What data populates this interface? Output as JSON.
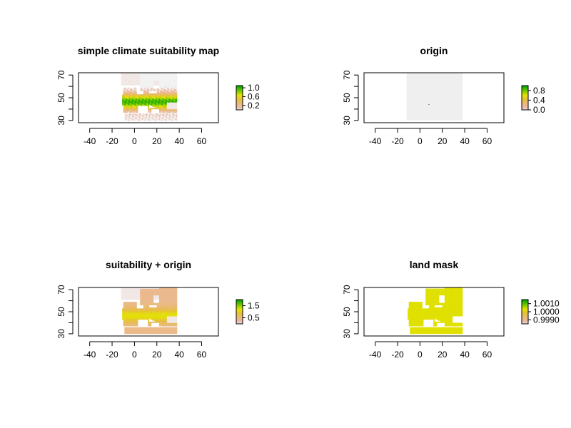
{
  "chart_data": [
    {
      "type": "raster-map",
      "title": "simple climate suitability map",
      "x_ticks": [
        -40,
        -20,
        0,
        20,
        40,
        60
      ],
      "y_ticks": [
        30,
        50,
        70
      ],
      "xlim": [
        -50,
        75
      ],
      "ylim": [
        28,
        72
      ],
      "data_extent": {
        "lon": [
          -12,
          38
        ],
        "lat": [
          30,
          72
        ]
      },
      "value_range": [
        0,
        1.1
      ],
      "legend_ticks": [
        "1.0",
        "0.6",
        "0.2"
      ],
      "legend_values": [
        1.0,
        0.6,
        0.2
      ],
      "pattern": "suitability",
      "colormap": "terrain_rev"
    },
    {
      "type": "raster-map",
      "title": "origin",
      "x_ticks": [
        -40,
        -20,
        0,
        20,
        40,
        60
      ],
      "y_ticks": [
        30,
        50,
        70
      ],
      "xlim": [
        -50,
        75
      ],
      "ylim": [
        28,
        72
      ],
      "data_extent": {
        "lon": [
          -12,
          38
        ],
        "lat": [
          30,
          72
        ]
      },
      "value_range": [
        0,
        1
      ],
      "legend_ticks": [
        "0.8",
        "0.4",
        "0.0"
      ],
      "legend_values": [
        0.8,
        0.4,
        0.0
      ],
      "pattern": "origin",
      "origin_point": {
        "lon": 8,
        "lat": 44
      },
      "colormap": "terrain_rev"
    },
    {
      "type": "raster-map",
      "title": "suitability + origin",
      "x_ticks": [
        -40,
        -20,
        0,
        20,
        40,
        60
      ],
      "y_ticks": [
        30,
        50,
        70
      ],
      "xlim": [
        -50,
        75
      ],
      "ylim": [
        28,
        72
      ],
      "data_extent": {
        "lon": [
          -12,
          38
        ],
        "lat": [
          30,
          72
        ]
      },
      "value_range": [
        0,
        2.0
      ],
      "legend_ticks": [
        "1.5",
        "0.5"
      ],
      "legend_values": [
        1.5,
        0.5
      ],
      "pattern": "suit_origin",
      "colormap": "terrain_rev"
    },
    {
      "type": "raster-map",
      "title": "land mask",
      "x_ticks": [
        -40,
        -20,
        0,
        20,
        40,
        60
      ],
      "y_ticks": [
        30,
        50,
        70
      ],
      "xlim": [
        -50,
        75
      ],
      "ylim": [
        28,
        72
      ],
      "data_extent": {
        "lon": [
          -12,
          38
        ],
        "lat": [
          30,
          72
        ]
      },
      "value_range": [
        0.9985,
        1.0015
      ],
      "legend_ticks": [
        "1.0010",
        "1.0000",
        "0.9990"
      ],
      "legend_values": [
        1.001,
        1.0,
        0.999
      ],
      "pattern": "mask",
      "colormap": "terrain_rev"
    }
  ]
}
